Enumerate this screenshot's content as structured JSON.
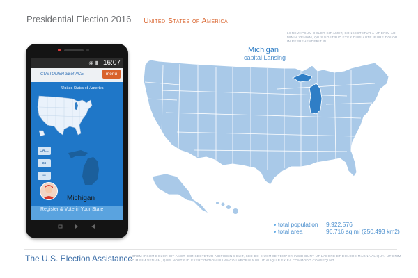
{
  "header": {
    "title": "Presidential Election 2016",
    "country": "United States of America",
    "lorem": "LOREM IPSUM DOLOR SIT AMET, CONSECTETUR A UT ENIM AD MINIM VENIAM, QUIS NOSTRUD EXER DUIS AUTE IRURE DOLOR IN REPREHENDERIT IN"
  },
  "phone": {
    "status_time": "16:07",
    "status_icons": "wifi-icon battery-icon",
    "customer_service": "CUSTOMER SERVICE",
    "menu_label": "menu",
    "country": "United States of America",
    "call_label": "CALL",
    "state_name": "Michigan",
    "cta": "Register & Vote in Your State"
  },
  "map": {
    "state_name": "Michigan",
    "capital": "capital Lansing",
    "highlight_color": "#2f7ec6",
    "base_color": "#a9c9e8"
  },
  "stats": {
    "population_label": "total population",
    "population_value": "9,922,576",
    "area_label": "total area",
    "area_value": "96,716 sq mi (250,493 km2)"
  },
  "footer": {
    "title": "The U.S. Election Assistance",
    "lorem": "LOREM IPSUM DOLOR SIT AMET, CONSECTETUR ADIPISCING ELIT, SED DO EIUSMOD TEMPOR INCIDIDUNT UT LABORE ET DOLORE MAGNA ALIQUA. UT ENIM AD MINIM VENIAM, QUIS NOSTRUD EXERCITATION ULLAMCO LABORIS NISI UT ALIQUIP EX EA COMMODO CONSEQUAT."
  }
}
